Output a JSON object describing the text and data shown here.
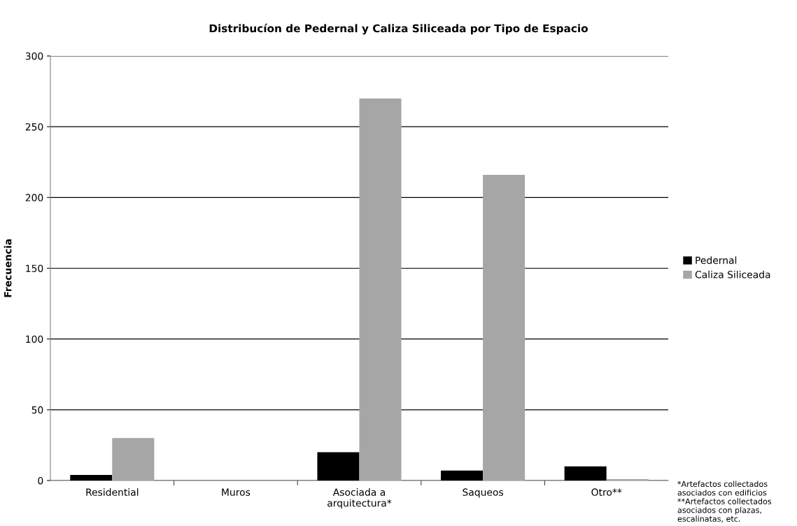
{
  "chart_data": {
    "type": "bar",
    "title": "Distribucíon de Pedernal y Caliza Siliceada por Tipo de Espacio",
    "ylabel": "Frecuencia",
    "categories": [
      "Residential",
      "Muros",
      "Asociada a\narquitectura*",
      "Saqueos",
      "Otro**"
    ],
    "series": [
      {
        "name": "Pedernal",
        "color": "#000000",
        "values": [
          4,
          0,
          20,
          7,
          10
        ]
      },
      {
        "name": "Caliza Siliceada",
        "color": "#a6a6a6",
        "values": [
          30,
          0,
          270,
          216,
          1
        ]
      }
    ],
    "ylim": [
      0,
      300
    ],
    "yticks": [
      0,
      50,
      100,
      150,
      200,
      250,
      300
    ],
    "grid": "y",
    "legend": "right",
    "annotations": [
      "*Artefactos collectados\nasociados con edificios\n**Artefactos collectados\nasociados con plazas,\nescalinatas, etc."
    ]
  }
}
